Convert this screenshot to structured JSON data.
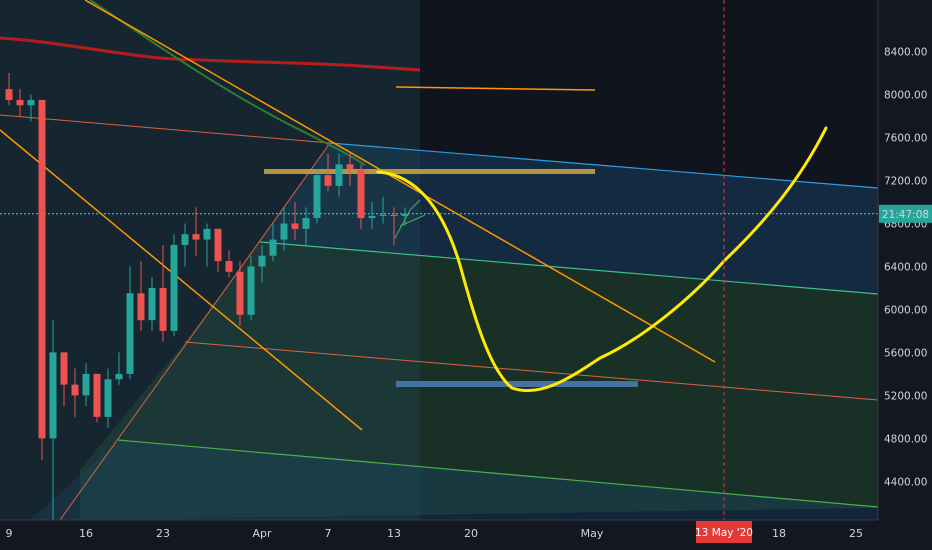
{
  "chart_data": {
    "type": "candlestick",
    "y_ticks": [
      4400,
      4800,
      5200,
      5600,
      6000,
      6400,
      6800,
      7200,
      7600,
      8000,
      8400
    ],
    "y_tick_labels": [
      "4400.00",
      "4800.00",
      "5200.00",
      "5600.00",
      "6000.00",
      "6400.00",
      "6800.00",
      "7200.00",
      "7600.00",
      "8000.00",
      "8400.00"
    ],
    "ylim": [
      4040,
      8880
    ],
    "x_ticks": [
      {
        "label": "9",
        "day": 9
      },
      {
        "label": "16",
        "day": 16
      },
      {
        "label": "23",
        "day": 23
      },
      {
        "label": "Apr",
        "day": 32
      },
      {
        "label": "7",
        "day": 38
      },
      {
        "label": "13",
        "day": 44
      },
      {
        "label": "20",
        "day": 51
      },
      {
        "label": "May",
        "day": 62
      },
      {
        "label": "18",
        "day": 79
      },
      {
        "label": "25",
        "day": 86
      }
    ],
    "current_price_label": "21:47:08",
    "current_price": 6890,
    "date_marker_label": "13 May '20",
    "date_marker_day": 74,
    "candles": [
      {
        "d": 9,
        "o": 8050,
        "h": 8200,
        "l": 7900,
        "c": 7950
      },
      {
        "d": 10,
        "o": 7950,
        "h": 8050,
        "l": 7800,
        "c": 7900
      },
      {
        "d": 11,
        "o": 7900,
        "h": 8000,
        "l": 7750,
        "c": 7950
      },
      {
        "d": 12,
        "o": 7950,
        "h": 7950,
        "l": 4600,
        "c": 4800
      },
      {
        "d": 13,
        "o": 4800,
        "h": 5900,
        "l": 3900,
        "c": 5600
      },
      {
        "d": 14,
        "o": 5600,
        "h": 5600,
        "l": 5100,
        "c": 5300
      },
      {
        "d": 15,
        "o": 5300,
        "h": 5450,
        "l": 5000,
        "c": 5200
      },
      {
        "d": 16,
        "o": 5200,
        "h": 5500,
        "l": 5100,
        "c": 5400
      },
      {
        "d": 17,
        "o": 5400,
        "h": 5400,
        "l": 4950,
        "c": 5000
      },
      {
        "d": 18,
        "o": 5000,
        "h": 5450,
        "l": 4900,
        "c": 5350
      },
      {
        "d": 19,
        "o": 5350,
        "h": 5600,
        "l": 5300,
        "c": 5400
      },
      {
        "d": 20,
        "o": 5400,
        "h": 6400,
        "l": 5350,
        "c": 6150
      },
      {
        "d": 21,
        "o": 6150,
        "h": 6450,
        "l": 5800,
        "c": 5900
      },
      {
        "d": 22,
        "o": 5900,
        "h": 6300,
        "l": 5800,
        "c": 6200
      },
      {
        "d": 23,
        "o": 6200,
        "h": 6600,
        "l": 5700,
        "c": 5800
      },
      {
        "d": 24,
        "o": 5800,
        "h": 6700,
        "l": 5750,
        "c": 6600
      },
      {
        "d": 25,
        "o": 6600,
        "h": 6800,
        "l": 6400,
        "c": 6700
      },
      {
        "d": 26,
        "o": 6700,
        "h": 6950,
        "l": 6500,
        "c": 6650
      },
      {
        "d": 27,
        "o": 6650,
        "h": 6800,
        "l": 6400,
        "c": 6750
      },
      {
        "d": 28,
        "o": 6750,
        "h": 6750,
        "l": 6350,
        "c": 6450
      },
      {
        "d": 29,
        "o": 6450,
        "h": 6550,
        "l": 6300,
        "c": 6350
      },
      {
        "d": 30,
        "o": 6350,
        "h": 6450,
        "l": 5850,
        "c": 5950
      },
      {
        "d": 31,
        "o": 5950,
        "h": 6500,
        "l": 5900,
        "c": 6400
      },
      {
        "d": 32,
        "o": 6400,
        "h": 6600,
        "l": 6250,
        "c": 6500
      },
      {
        "d": 33,
        "o": 6500,
        "h": 6800,
        "l": 6450,
        "c": 6650
      },
      {
        "d": 34,
        "o": 6650,
        "h": 6950,
        "l": 6550,
        "c": 6800
      },
      {
        "d": 35,
        "o": 6800,
        "h": 7000,
        "l": 6650,
        "c": 6750
      },
      {
        "d": 36,
        "o": 6750,
        "h": 6950,
        "l": 6600,
        "c": 6850
      },
      {
        "d": 37,
        "o": 6850,
        "h": 7300,
        "l": 6800,
        "c": 7250
      },
      {
        "d": 38,
        "o": 7250,
        "h": 7450,
        "l": 7100,
        "c": 7150
      },
      {
        "d": 39,
        "o": 7150,
        "h": 7450,
        "l": 7050,
        "c": 7350
      },
      {
        "d": 40,
        "o": 7350,
        "h": 7450,
        "l": 7150,
        "c": 7300
      },
      {
        "d": 41,
        "o": 7300,
        "h": 7350,
        "l": 6750,
        "c": 6850
      },
      {
        "d": 42,
        "o": 6850,
        "h": 7000,
        "l": 6750,
        "c": 6870
      },
      {
        "d": 43,
        "o": 6870,
        "h": 7050,
        "l": 6800,
        "c": 6880
      },
      {
        "d": 44,
        "o": 6880,
        "h": 6950,
        "l": 6600,
        "c": 6870
      },
      {
        "d": 45,
        "o": 6870,
        "h": 6950,
        "l": 6780,
        "c": 6890
      }
    ]
  }
}
